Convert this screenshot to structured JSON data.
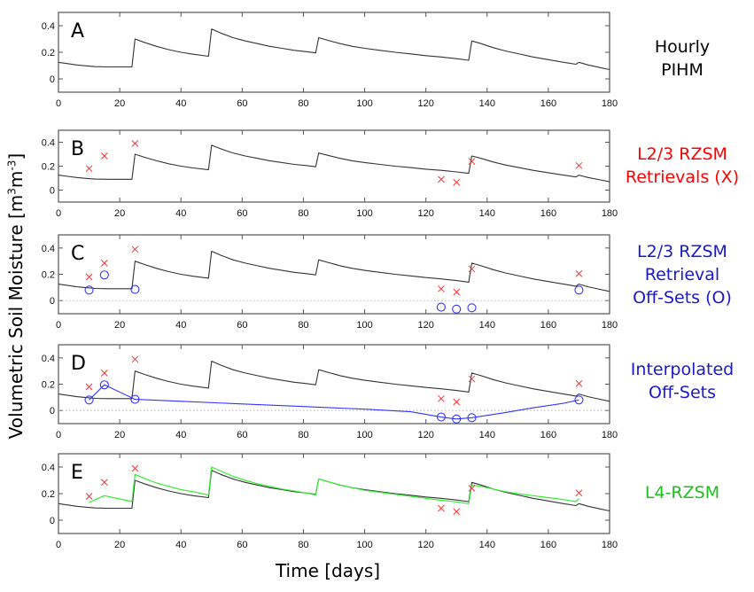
{
  "figure": {
    "ylabel_prefix": "Volumetric Soil Moisture [m",
    "ylabel_sup1": "3",
    "ylabel_mid": "m",
    "ylabel_sup2": "-3",
    "ylabel_suffix": "]",
    "xlabel": "Time [days]"
  },
  "panel_labels": [
    {
      "lines": [
        "Hourly",
        "PIHM"
      ],
      "color": "#000000"
    },
    {
      "lines": [
        "L2/3 RZSM",
        "Retrievals (X)"
      ],
      "color": "#ff0000"
    },
    {
      "lines": [
        "L2/3 RZSM",
        "Retrieval",
        "Off-Sets (O)"
      ],
      "color": "#1a1acc"
    },
    {
      "lines": [
        "Interpolated",
        "Off-Sets"
      ],
      "color": "#1a1acc"
    },
    {
      "lines": [
        "L4-RZSM"
      ],
      "color": "#1fbf1f"
    }
  ],
  "colors": {
    "pihm": "#333333",
    "retrieval": "#ff3333",
    "offset": "#3333ff",
    "l4": "#33ee33",
    "axis": "#555555"
  },
  "chart_data": {
    "type": "line",
    "xlabel": "Time [days]",
    "ylabel": "Volumetric Soil Moisture [m3m-3]",
    "xlim": [
      0,
      180
    ],
    "ylim": [
      -0.1,
      0.5
    ],
    "xticks": [
      0,
      20,
      40,
      60,
      80,
      100,
      120,
      140,
      160,
      180
    ],
    "yticks": [
      0,
      0.2,
      0.4
    ],
    "ytick_labels": [
      "0",
      "0.2",
      "0.4"
    ],
    "panels": [
      {
        "letter": "A",
        "series": [
          "pihm"
        ],
        "zero_line": false
      },
      {
        "letter": "B",
        "series": [
          "pihm",
          "retrievals"
        ],
        "zero_line": false
      },
      {
        "letter": "C",
        "series": [
          "pihm",
          "retrievals",
          "offsets"
        ],
        "zero_line": true
      },
      {
        "letter": "D",
        "series": [
          "pihm",
          "retrievals",
          "offsets",
          "interpolated_offsets"
        ],
        "zero_line": true
      },
      {
        "letter": "E",
        "series": [
          "pihm",
          "retrievals",
          "l4"
        ],
        "zero_line": false
      }
    ],
    "series": {
      "pihm": {
        "name": "Hourly PIHM",
        "x": [
          0,
          3,
          6,
          9,
          12,
          16,
          20,
          24,
          25,
          28,
          32,
          36,
          40,
          44,
          49,
          50,
          53,
          57,
          61,
          65,
          69,
          73,
          77,
          81,
          84,
          85,
          88,
          92,
          96,
          100,
          105,
          110,
          115,
          120,
          125,
          130,
          134,
          135,
          138,
          142,
          146,
          150,
          155,
          160,
          165,
          169,
          170,
          173,
          177,
          180
        ],
        "y": [
          0.125,
          0.115,
          0.105,
          0.098,
          0.092,
          0.09,
          0.09,
          0.09,
          0.3,
          0.275,
          0.245,
          0.22,
          0.2,
          0.185,
          0.17,
          0.375,
          0.345,
          0.31,
          0.285,
          0.265,
          0.245,
          0.23,
          0.215,
          0.205,
          0.195,
          0.31,
          0.29,
          0.265,
          0.245,
          0.23,
          0.215,
          0.2,
          0.188,
          0.175,
          0.165,
          0.152,
          0.14,
          0.285,
          0.265,
          0.235,
          0.21,
          0.19,
          0.165,
          0.145,
          0.125,
          0.11,
          0.125,
          0.105,
          0.085,
          0.07
        ]
      },
      "retrievals": {
        "name": "L2/3 RZSM Retrievals (X)",
        "marker": "x",
        "x": [
          10,
          15,
          25,
          125,
          130,
          135,
          170
        ],
        "y": [
          0.18,
          0.285,
          0.39,
          0.09,
          0.065,
          0.24,
          0.205
        ]
      },
      "offsets": {
        "name": "L2/3 RZSM Retrieval Off-Sets (O)",
        "marker": "o",
        "x": [
          10,
          15,
          25,
          125,
          130,
          135,
          170
        ],
        "y": [
          0.08,
          0.195,
          0.085,
          -0.05,
          -0.065,
          -0.055,
          0.08
        ]
      },
      "interpolated_offsets": {
        "name": "Interpolated Off-Sets",
        "x": [
          10,
          15,
          25,
          40,
          60,
          80,
          100,
          115,
          125,
          130,
          135,
          145,
          155,
          165,
          170
        ],
        "y": [
          0.08,
          0.195,
          0.085,
          0.07,
          0.05,
          0.03,
          0.01,
          -0.01,
          -0.05,
          -0.065,
          -0.055,
          -0.02,
          0.02,
          0.055,
          0.08
        ]
      },
      "l4": {
        "name": "L4-RZSM",
        "x": [
          10,
          15,
          24,
          25,
          28,
          32,
          36,
          40,
          44,
          49,
          50,
          53,
          57,
          61,
          65,
          69,
          73,
          77,
          81,
          84,
          85,
          88,
          92,
          96,
          100,
          105,
          110,
          115,
          120,
          125,
          130,
          134,
          135,
          138,
          142,
          146,
          150,
          155,
          160,
          165,
          169,
          170
        ],
        "y": [
          0.135,
          0.185,
          0.14,
          0.345,
          0.315,
          0.28,
          0.255,
          0.23,
          0.215,
          0.19,
          0.4,
          0.37,
          0.33,
          0.3,
          0.275,
          0.255,
          0.235,
          0.22,
          0.205,
          0.19,
          0.31,
          0.29,
          0.265,
          0.245,
          0.225,
          0.21,
          0.195,
          0.18,
          0.165,
          0.15,
          0.138,
          0.125,
          0.265,
          0.255,
          0.235,
          0.215,
          0.2,
          0.185,
          0.17,
          0.155,
          0.14,
          0.16
        ]
      }
    }
  }
}
